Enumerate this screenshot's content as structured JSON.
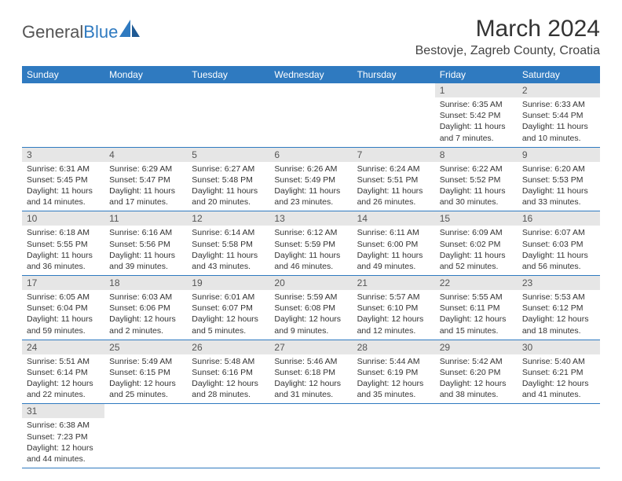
{
  "logo": {
    "part1": "General",
    "part2": "Blue"
  },
  "title": "March 2024",
  "location": "Bestovje, Zagreb County, Croatia",
  "colors": {
    "header_bg": "#2f7ac0",
    "header_text": "#ffffff",
    "daynum_bg": "#e6e6e6",
    "border": "#2f7ac0",
    "logo_blue": "#2f7ac0"
  },
  "weekdays": [
    "Sunday",
    "Monday",
    "Tuesday",
    "Wednesday",
    "Thursday",
    "Friday",
    "Saturday"
  ],
  "weeks": [
    [
      null,
      null,
      null,
      null,
      null,
      {
        "n": "1",
        "sr": "Sunrise: 6:35 AM",
        "ss": "Sunset: 5:42 PM",
        "d1": "Daylight: 11 hours",
        "d2": "and 7 minutes."
      },
      {
        "n": "2",
        "sr": "Sunrise: 6:33 AM",
        "ss": "Sunset: 5:44 PM",
        "d1": "Daylight: 11 hours",
        "d2": "and 10 minutes."
      }
    ],
    [
      {
        "n": "3",
        "sr": "Sunrise: 6:31 AM",
        "ss": "Sunset: 5:45 PM",
        "d1": "Daylight: 11 hours",
        "d2": "and 14 minutes."
      },
      {
        "n": "4",
        "sr": "Sunrise: 6:29 AM",
        "ss": "Sunset: 5:47 PM",
        "d1": "Daylight: 11 hours",
        "d2": "and 17 minutes."
      },
      {
        "n": "5",
        "sr": "Sunrise: 6:27 AM",
        "ss": "Sunset: 5:48 PM",
        "d1": "Daylight: 11 hours",
        "d2": "and 20 minutes."
      },
      {
        "n": "6",
        "sr": "Sunrise: 6:26 AM",
        "ss": "Sunset: 5:49 PM",
        "d1": "Daylight: 11 hours",
        "d2": "and 23 minutes."
      },
      {
        "n": "7",
        "sr": "Sunrise: 6:24 AM",
        "ss": "Sunset: 5:51 PM",
        "d1": "Daylight: 11 hours",
        "d2": "and 26 minutes."
      },
      {
        "n": "8",
        "sr": "Sunrise: 6:22 AM",
        "ss": "Sunset: 5:52 PM",
        "d1": "Daylight: 11 hours",
        "d2": "and 30 minutes."
      },
      {
        "n": "9",
        "sr": "Sunrise: 6:20 AM",
        "ss": "Sunset: 5:53 PM",
        "d1": "Daylight: 11 hours",
        "d2": "and 33 minutes."
      }
    ],
    [
      {
        "n": "10",
        "sr": "Sunrise: 6:18 AM",
        "ss": "Sunset: 5:55 PM",
        "d1": "Daylight: 11 hours",
        "d2": "and 36 minutes."
      },
      {
        "n": "11",
        "sr": "Sunrise: 6:16 AM",
        "ss": "Sunset: 5:56 PM",
        "d1": "Daylight: 11 hours",
        "d2": "and 39 minutes."
      },
      {
        "n": "12",
        "sr": "Sunrise: 6:14 AM",
        "ss": "Sunset: 5:58 PM",
        "d1": "Daylight: 11 hours",
        "d2": "and 43 minutes."
      },
      {
        "n": "13",
        "sr": "Sunrise: 6:12 AM",
        "ss": "Sunset: 5:59 PM",
        "d1": "Daylight: 11 hours",
        "d2": "and 46 minutes."
      },
      {
        "n": "14",
        "sr": "Sunrise: 6:11 AM",
        "ss": "Sunset: 6:00 PM",
        "d1": "Daylight: 11 hours",
        "d2": "and 49 minutes."
      },
      {
        "n": "15",
        "sr": "Sunrise: 6:09 AM",
        "ss": "Sunset: 6:02 PM",
        "d1": "Daylight: 11 hours",
        "d2": "and 52 minutes."
      },
      {
        "n": "16",
        "sr": "Sunrise: 6:07 AM",
        "ss": "Sunset: 6:03 PM",
        "d1": "Daylight: 11 hours",
        "d2": "and 56 minutes."
      }
    ],
    [
      {
        "n": "17",
        "sr": "Sunrise: 6:05 AM",
        "ss": "Sunset: 6:04 PM",
        "d1": "Daylight: 11 hours",
        "d2": "and 59 minutes."
      },
      {
        "n": "18",
        "sr": "Sunrise: 6:03 AM",
        "ss": "Sunset: 6:06 PM",
        "d1": "Daylight: 12 hours",
        "d2": "and 2 minutes."
      },
      {
        "n": "19",
        "sr": "Sunrise: 6:01 AM",
        "ss": "Sunset: 6:07 PM",
        "d1": "Daylight: 12 hours",
        "d2": "and 5 minutes."
      },
      {
        "n": "20",
        "sr": "Sunrise: 5:59 AM",
        "ss": "Sunset: 6:08 PM",
        "d1": "Daylight: 12 hours",
        "d2": "and 9 minutes."
      },
      {
        "n": "21",
        "sr": "Sunrise: 5:57 AM",
        "ss": "Sunset: 6:10 PM",
        "d1": "Daylight: 12 hours",
        "d2": "and 12 minutes."
      },
      {
        "n": "22",
        "sr": "Sunrise: 5:55 AM",
        "ss": "Sunset: 6:11 PM",
        "d1": "Daylight: 12 hours",
        "d2": "and 15 minutes."
      },
      {
        "n": "23",
        "sr": "Sunrise: 5:53 AM",
        "ss": "Sunset: 6:12 PM",
        "d1": "Daylight: 12 hours",
        "d2": "and 18 minutes."
      }
    ],
    [
      {
        "n": "24",
        "sr": "Sunrise: 5:51 AM",
        "ss": "Sunset: 6:14 PM",
        "d1": "Daylight: 12 hours",
        "d2": "and 22 minutes."
      },
      {
        "n": "25",
        "sr": "Sunrise: 5:49 AM",
        "ss": "Sunset: 6:15 PM",
        "d1": "Daylight: 12 hours",
        "d2": "and 25 minutes."
      },
      {
        "n": "26",
        "sr": "Sunrise: 5:48 AM",
        "ss": "Sunset: 6:16 PM",
        "d1": "Daylight: 12 hours",
        "d2": "and 28 minutes."
      },
      {
        "n": "27",
        "sr": "Sunrise: 5:46 AM",
        "ss": "Sunset: 6:18 PM",
        "d1": "Daylight: 12 hours",
        "d2": "and 31 minutes."
      },
      {
        "n": "28",
        "sr": "Sunrise: 5:44 AM",
        "ss": "Sunset: 6:19 PM",
        "d1": "Daylight: 12 hours",
        "d2": "and 35 minutes."
      },
      {
        "n": "29",
        "sr": "Sunrise: 5:42 AM",
        "ss": "Sunset: 6:20 PM",
        "d1": "Daylight: 12 hours",
        "d2": "and 38 minutes."
      },
      {
        "n": "30",
        "sr": "Sunrise: 5:40 AM",
        "ss": "Sunset: 6:21 PM",
        "d1": "Daylight: 12 hours",
        "d2": "and 41 minutes."
      }
    ],
    [
      {
        "n": "31",
        "sr": "Sunrise: 6:38 AM",
        "ss": "Sunset: 7:23 PM",
        "d1": "Daylight: 12 hours",
        "d2": "and 44 minutes."
      },
      null,
      null,
      null,
      null,
      null,
      null
    ]
  ]
}
